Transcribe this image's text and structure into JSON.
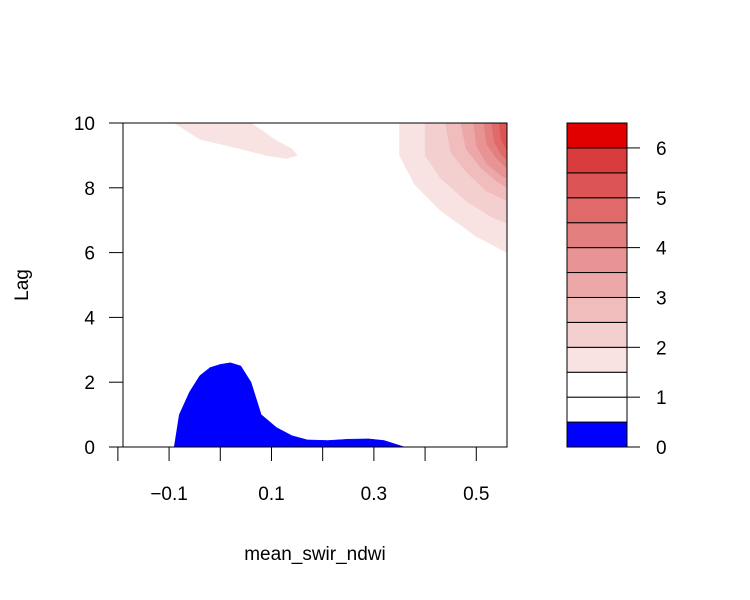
{
  "chart_data": {
    "type": "filled-contour",
    "title": "",
    "xlabel": "mean_swir_ndwi",
    "ylabel": "Lag",
    "xlim": [
      -0.19,
      0.56
    ],
    "ylim": [
      0,
      10
    ],
    "x_ticks": [
      -0.1,
      0.1,
      0.3,
      0.5
    ],
    "x_tick_labels": [
      "−0.1",
      "0.1",
      "0.3",
      "0.5"
    ],
    "x_minor_ticks": [
      -0.2,
      0.0,
      0.2,
      0.4
    ],
    "y_ticks": [
      0,
      2,
      4,
      6,
      8,
      10
    ],
    "y_tick_labels": [
      "0",
      "2",
      "4",
      "6",
      "8",
      "10"
    ],
    "colorbar": {
      "levels": [
        0,
        0.5,
        1,
        1.5,
        2,
        2.5,
        3,
        3.5,
        4,
        4.5,
        5,
        5.5,
        6,
        6.5
      ],
      "tick_values": [
        0,
        1,
        2,
        3,
        4,
        5,
        6
      ],
      "tick_labels": [
        "0",
        "1",
        "2",
        "3",
        "4",
        "5",
        "6"
      ],
      "colors": [
        "#0000ff",
        "#ffffff",
        "#ffffff",
        "#f8e2e2",
        "#f4cfcf",
        "#f0bcbc",
        "#eca8a8",
        "#e89494",
        "#e47f7f",
        "#e06a6a",
        "#dc5454",
        "#d83c3c",
        "#e10000"
      ]
    },
    "regions": [
      {
        "name": "low-region",
        "level": [
          0,
          0.5
        ],
        "color": "#0000ff",
        "polygon": [
          [
            -0.09,
            0
          ],
          [
            -0.08,
            1.0
          ],
          [
            -0.06,
            1.7
          ],
          [
            -0.04,
            2.2
          ],
          [
            -0.02,
            2.45
          ],
          [
            0.0,
            2.55
          ],
          [
            0.02,
            2.6
          ],
          [
            0.04,
            2.5
          ],
          [
            0.06,
            2.0
          ],
          [
            0.08,
            1.0
          ],
          [
            0.11,
            0.6
          ],
          [
            0.14,
            0.35
          ],
          [
            0.17,
            0.22
          ],
          [
            0.21,
            0.2
          ],
          [
            0.25,
            0.24
          ],
          [
            0.29,
            0.25
          ],
          [
            0.32,
            0.2
          ],
          [
            0.35,
            0.05
          ],
          [
            0.36,
            0
          ]
        ]
      },
      {
        "name": "top-left-band",
        "level": [
          1.5,
          2
        ],
        "color": "#f8e2e2",
        "polygon": [
          [
            -0.09,
            10
          ],
          [
            -0.04,
            9.5
          ],
          [
            0.04,
            9.2
          ],
          [
            0.09,
            9.0
          ],
          [
            0.13,
            8.9
          ],
          [
            0.15,
            9.0
          ],
          [
            0.14,
            9.2
          ],
          [
            0.11,
            9.45
          ],
          [
            0.06,
            10
          ]
        ]
      },
      {
        "name": "top-right-2",
        "level": [
          1.5,
          2
        ],
        "color": "#f8e2e2",
        "polygon": [
          [
            0.35,
            10
          ],
          [
            0.35,
            9.0
          ],
          [
            0.38,
            8.1
          ],
          [
            0.43,
            7.3
          ],
          [
            0.5,
            6.5
          ],
          [
            0.56,
            6.0
          ],
          [
            0.56,
            10
          ]
        ]
      },
      {
        "name": "top-right-2.5",
        "level": [
          2,
          2.5
        ],
        "color": "#f4cfcf",
        "polygon": [
          [
            0.4,
            10
          ],
          [
            0.4,
            9.0
          ],
          [
            0.43,
            8.3
          ],
          [
            0.48,
            7.6
          ],
          [
            0.53,
            7.1
          ],
          [
            0.56,
            6.9
          ],
          [
            0.56,
            10
          ]
        ]
      },
      {
        "name": "top-right-3",
        "level": [
          2.5,
          3
        ],
        "color": "#f0bcbc",
        "polygon": [
          [
            0.44,
            10
          ],
          [
            0.45,
            9.1
          ],
          [
            0.48,
            8.5
          ],
          [
            0.52,
            7.9
          ],
          [
            0.56,
            7.6
          ],
          [
            0.56,
            10
          ]
        ]
      },
      {
        "name": "top-right-3.5",
        "level": [
          3,
          3.5
        ],
        "color": "#eca8a8",
        "polygon": [
          [
            0.47,
            10
          ],
          [
            0.48,
            9.2
          ],
          [
            0.51,
            8.6
          ],
          [
            0.54,
            8.2
          ],
          [
            0.56,
            8.0
          ],
          [
            0.56,
            10
          ]
        ]
      },
      {
        "name": "top-right-4",
        "level": [
          3.5,
          4
        ],
        "color": "#e89494",
        "polygon": [
          [
            0.495,
            10
          ],
          [
            0.5,
            9.3
          ],
          [
            0.52,
            8.75
          ],
          [
            0.55,
            8.35
          ],
          [
            0.56,
            8.3
          ],
          [
            0.56,
            10
          ]
        ]
      },
      {
        "name": "top-right-4.5",
        "level": [
          4,
          4.5
        ],
        "color": "#e47f7f",
        "polygon": [
          [
            0.515,
            10
          ],
          [
            0.52,
            9.35
          ],
          [
            0.54,
            8.9
          ],
          [
            0.56,
            8.6
          ],
          [
            0.56,
            10
          ]
        ]
      },
      {
        "name": "top-right-5",
        "level": [
          4.5,
          5
        ],
        "color": "#e06a6a",
        "polygon": [
          [
            0.53,
            10
          ],
          [
            0.535,
            9.4
          ],
          [
            0.55,
            9.0
          ],
          [
            0.56,
            8.85
          ],
          [
            0.56,
            10
          ]
        ]
      },
      {
        "name": "top-right-5.5",
        "level": [
          5,
          5.5
        ],
        "color": "#dc5454",
        "polygon": [
          [
            0.545,
            10
          ],
          [
            0.548,
            9.5
          ],
          [
            0.56,
            9.15
          ],
          [
            0.56,
            10
          ]
        ]
      }
    ]
  }
}
